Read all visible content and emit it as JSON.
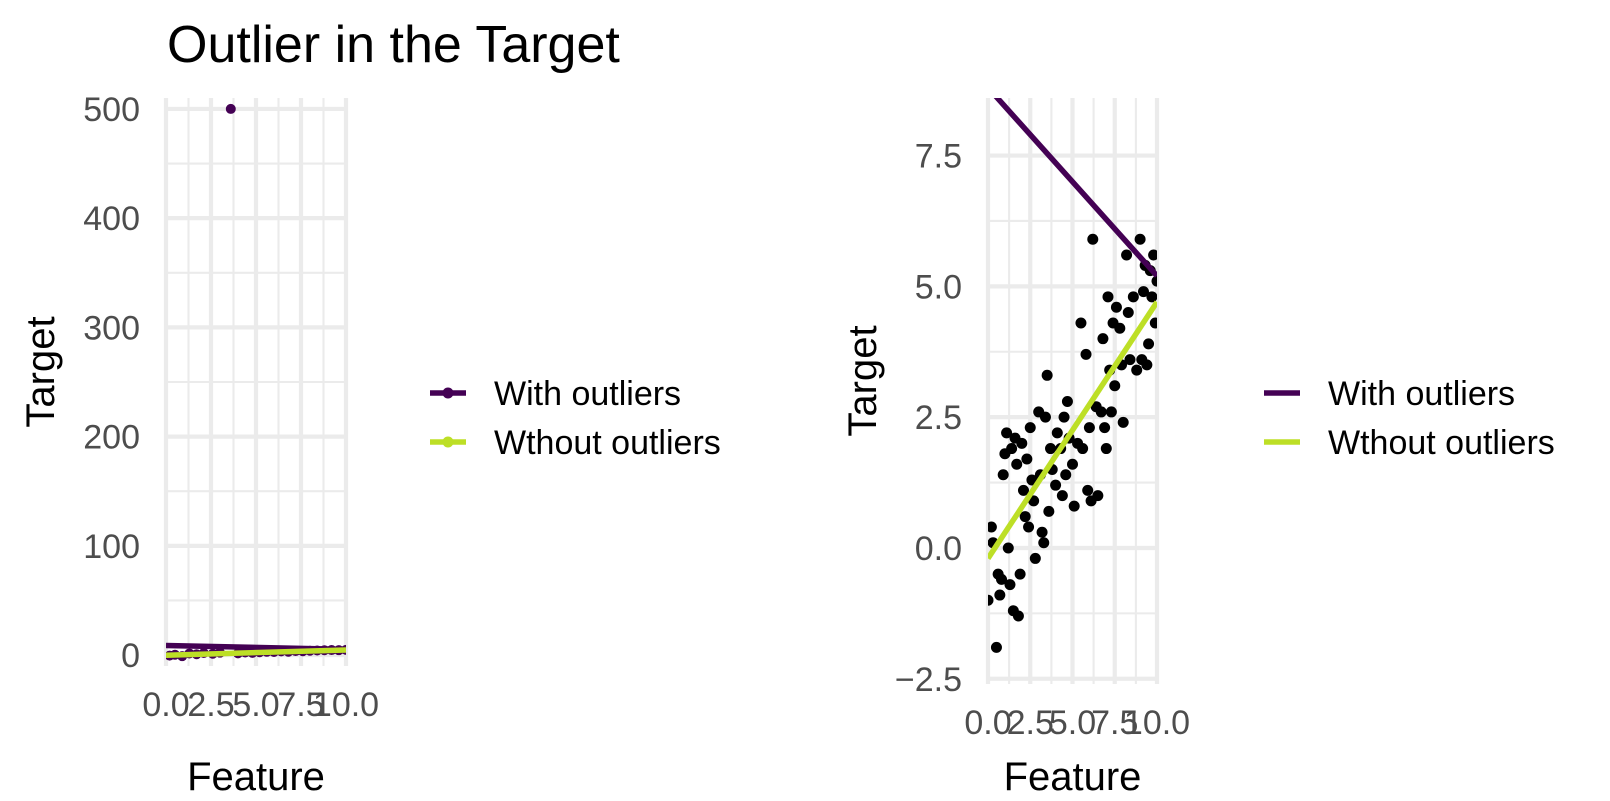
{
  "title": "Outlier in the Target",
  "colors": {
    "with_outliers": "#440154",
    "without_outliers": "#bddf26",
    "points_right": "#000000",
    "grid": "#ebebeb",
    "tick_text": "#4d4d4d"
  },
  "chart_data": [
    {
      "type": "scatter",
      "title": "Outlier in the Target",
      "xlabel": "Feature",
      "ylabel": "Target",
      "xlim": [
        0,
        10
      ],
      "ylim": [
        -10,
        510
      ],
      "x_ticks": [
        "0.0",
        "2.5",
        "5.0",
        "7.5",
        "10.0"
      ],
      "y_ticks": [
        "0",
        "100",
        "200",
        "300",
        "400",
        "500"
      ],
      "grid": true,
      "legend_position": "right",
      "legend": [
        "With outliers",
        "Wthout outliers"
      ],
      "points": [
        {
          "x": 0.2,
          "y": -0.5
        },
        {
          "x": 0.5,
          "y": 0.3
        },
        {
          "x": 0.9,
          "y": -1.0
        },
        {
          "x": 1.3,
          "y": 1.5
        },
        {
          "x": 1.7,
          "y": 0.8
        },
        {
          "x": 2.1,
          "y": 1.9
        },
        {
          "x": 2.6,
          "y": 1.2
        },
        {
          "x": 3.0,
          "y": 2.2
        },
        {
          "x": 3.6,
          "y": 500
        },
        {
          "x": 4.0,
          "y": 1.6
        },
        {
          "x": 4.4,
          "y": 2.4
        },
        {
          "x": 4.8,
          "y": 2.0
        },
        {
          "x": 5.2,
          "y": 2.6
        },
        {
          "x": 5.6,
          "y": 3.0
        },
        {
          "x": 6.0,
          "y": 2.8
        },
        {
          "x": 6.4,
          "y": 3.4
        },
        {
          "x": 6.8,
          "y": 3.1
        },
        {
          "x": 7.2,
          "y": 3.7
        },
        {
          "x": 7.6,
          "y": 3.5
        },
        {
          "x": 8.0,
          "y": 4.0
        },
        {
          "x": 8.4,
          "y": 4.2
        },
        {
          "x": 8.8,
          "y": 4.4
        },
        {
          "x": 9.2,
          "y": 4.6
        },
        {
          "x": 9.6,
          "y": 4.5
        },
        {
          "x": 10.0,
          "y": 4.8
        }
      ],
      "series": [
        {
          "name": "With outliers",
          "x": [
            0,
            10
          ],
          "y": [
            8.8,
            5.2
          ]
        },
        {
          "name": "Wthout outliers",
          "x": [
            0,
            10
          ],
          "y": [
            -0.2,
            4.7
          ]
        }
      ]
    },
    {
      "type": "scatter",
      "xlabel": "Feature",
      "ylabel": "Target",
      "xlim": [
        0,
        10
      ],
      "ylim": [
        -2.6,
        8.6
      ],
      "x_ticks": [
        "0.0",
        "2.5",
        "5.0",
        "7.5",
        "10.0"
      ],
      "y_ticks": [
        "-2.5",
        "0.0",
        "2.5",
        "5.0",
        "7.5"
      ],
      "grid": true,
      "legend_position": "right",
      "legend": [
        "With outliers",
        "Wthout outliers"
      ],
      "points": [
        {
          "x": 0.0,
          "y": -1.0
        },
        {
          "x": 0.2,
          "y": 0.4
        },
        {
          "x": 0.3,
          "y": 0.1
        },
        {
          "x": 0.5,
          "y": -1.9
        },
        {
          "x": 0.6,
          "y": -0.5
        },
        {
          "x": 0.7,
          "y": -0.9
        },
        {
          "x": 0.8,
          "y": -0.6
        },
        {
          "x": 0.9,
          "y": 1.4
        },
        {
          "x": 1.0,
          "y": 1.8
        },
        {
          "x": 1.1,
          "y": 2.2
        },
        {
          "x": 1.2,
          "y": 0.0
        },
        {
          "x": 1.3,
          "y": -0.7
        },
        {
          "x": 1.4,
          "y": 1.9
        },
        {
          "x": 1.5,
          "y": -1.2
        },
        {
          "x": 1.6,
          "y": 2.1
        },
        {
          "x": 1.7,
          "y": 1.6
        },
        {
          "x": 1.8,
          "y": -1.3
        },
        {
          "x": 1.9,
          "y": -0.5
        },
        {
          "x": 2.0,
          "y": 2.0
        },
        {
          "x": 2.1,
          "y": 1.1
        },
        {
          "x": 2.2,
          "y": 0.6
        },
        {
          "x": 2.3,
          "y": 1.7
        },
        {
          "x": 2.4,
          "y": 0.4
        },
        {
          "x": 2.5,
          "y": 2.3
        },
        {
          "x": 2.6,
          "y": 1.3
        },
        {
          "x": 2.7,
          "y": 0.9
        },
        {
          "x": 2.8,
          "y": -0.2
        },
        {
          "x": 3.0,
          "y": 2.6
        },
        {
          "x": 3.1,
          "y": 1.4
        },
        {
          "x": 3.2,
          "y": 0.3
        },
        {
          "x": 3.3,
          "y": 0.1
        },
        {
          "x": 3.4,
          "y": 2.5
        },
        {
          "x": 3.5,
          "y": 3.3
        },
        {
          "x": 3.6,
          "y": 0.7
        },
        {
          "x": 3.7,
          "y": 1.9
        },
        {
          "x": 3.8,
          "y": 1.5
        },
        {
          "x": 4.0,
          "y": 1.2
        },
        {
          "x": 4.1,
          "y": 2.2
        },
        {
          "x": 4.3,
          "y": 1.9
        },
        {
          "x": 4.4,
          "y": 1.0
        },
        {
          "x": 4.5,
          "y": 2.5
        },
        {
          "x": 4.6,
          "y": 1.4
        },
        {
          "x": 4.7,
          "y": 2.8
        },
        {
          "x": 4.8,
          "y": 2.1
        },
        {
          "x": 5.0,
          "y": 1.6
        },
        {
          "x": 5.1,
          "y": 0.8
        },
        {
          "x": 5.3,
          "y": 2.0
        },
        {
          "x": 5.5,
          "y": 4.3
        },
        {
          "x": 5.6,
          "y": 1.9
        },
        {
          "x": 5.8,
          "y": 3.7
        },
        {
          "x": 5.9,
          "y": 1.1
        },
        {
          "x": 6.0,
          "y": 2.3
        },
        {
          "x": 6.1,
          "y": 0.9
        },
        {
          "x": 6.2,
          "y": 5.9
        },
        {
          "x": 6.4,
          "y": 2.7
        },
        {
          "x": 6.5,
          "y": 1.0
        },
        {
          "x": 6.7,
          "y": 2.6
        },
        {
          "x": 6.8,
          "y": 4.0
        },
        {
          "x": 6.9,
          "y": 2.3
        },
        {
          "x": 7.0,
          "y": 1.9
        },
        {
          "x": 7.1,
          "y": 4.8
        },
        {
          "x": 7.2,
          "y": 3.4
        },
        {
          "x": 7.3,
          "y": 2.6
        },
        {
          "x": 7.4,
          "y": 4.3
        },
        {
          "x": 7.5,
          "y": 3.1
        },
        {
          "x": 7.6,
          "y": 4.6
        },
        {
          "x": 7.8,
          "y": 4.2
        },
        {
          "x": 7.9,
          "y": 3.5
        },
        {
          "x": 8.0,
          "y": 2.4
        },
        {
          "x": 8.2,
          "y": 5.6
        },
        {
          "x": 8.3,
          "y": 4.5
        },
        {
          "x": 8.4,
          "y": 3.6
        },
        {
          "x": 8.6,
          "y": 4.8
        },
        {
          "x": 8.8,
          "y": 3.4
        },
        {
          "x": 9.0,
          "y": 5.9
        },
        {
          "x": 9.1,
          "y": 3.6
        },
        {
          "x": 9.2,
          "y": 4.9
        },
        {
          "x": 9.3,
          "y": 5.4
        },
        {
          "x": 9.4,
          "y": 3.5
        },
        {
          "x": 9.5,
          "y": 3.9
        },
        {
          "x": 9.6,
          "y": 5.3
        },
        {
          "x": 9.7,
          "y": 4.8
        },
        {
          "x": 9.8,
          "y": 5.6
        },
        {
          "x": 9.9,
          "y": 4.3
        },
        {
          "x": 10.0,
          "y": 5.1
        }
      ],
      "series": [
        {
          "name": "With outliers",
          "x": [
            0,
            10
          ],
          "y": [
            8.8,
            5.2
          ]
        },
        {
          "name": "Wthout outliers",
          "x": [
            0,
            10
          ],
          "y": [
            -0.2,
            4.7
          ]
        }
      ]
    }
  ]
}
